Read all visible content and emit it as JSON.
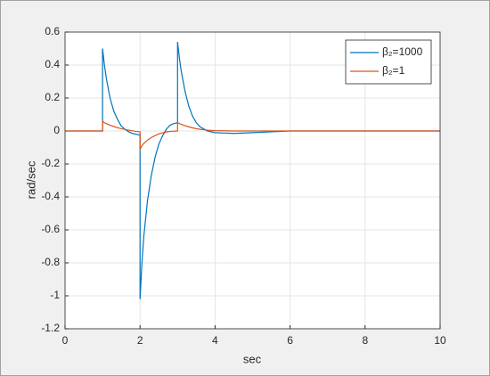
{
  "chart_data": {
    "type": "line",
    "xlabel": "sec",
    "ylabel": "rad/sec",
    "x": [
      0,
      1,
      1,
      1.05,
      1.1,
      1.2,
      1.3,
      1.4,
      1.5,
      1.6,
      1.7,
      1.8,
      1.9,
      2,
      2,
      2.05,
      2.1,
      2.2,
      2.3,
      2.4,
      2.5,
      2.6,
      2.7,
      2.8,
      2.9,
      3,
      3,
      3.05,
      3.1,
      3.2,
      3.3,
      3.4,
      3.5,
      3.6,
      3.8,
      4,
      4.5,
      5,
      5.5,
      6,
      7,
      8,
      10
    ],
    "series": [
      {
        "name": "β₂=1000",
        "color": "#0072BD",
        "values": [
          0,
          0,
          0.5,
          0.4,
          0.32,
          0.2,
          0.12,
          0.07,
          0.03,
          0.01,
          -0.005,
          -0.015,
          -0.02,
          -0.025,
          -1.02,
          -0.8,
          -0.64,
          -0.42,
          -0.27,
          -0.16,
          -0.08,
          -0.03,
          0.01,
          0.035,
          0.045,
          0.05,
          0.54,
          0.44,
          0.36,
          0.24,
          0.15,
          0.09,
          0.05,
          0.025,
          0,
          -0.01,
          -0.015,
          -0.01,
          -0.005,
          0,
          0,
          0,
          0
        ]
      },
      {
        "name": "β₂=1",
        "color": "#D95319",
        "values": [
          0,
          0,
          0.06,
          0.05,
          0.045,
          0.035,
          0.027,
          0.02,
          0.014,
          0.009,
          0.005,
          0.001,
          -0.003,
          -0.005,
          -0.11,
          -0.09,
          -0.075,
          -0.055,
          -0.04,
          -0.028,
          -0.018,
          -0.011,
          -0.006,
          -0.003,
          -0.001,
          0,
          0.05,
          0.045,
          0.04,
          0.032,
          0.025,
          0.019,
          0.014,
          0.01,
          0.005,
          0.002,
          0,
          0,
          0,
          0,
          0,
          0,
          0
        ]
      }
    ],
    "xlim": [
      0,
      10
    ],
    "xticks": [
      0,
      2,
      4,
      6,
      8,
      10
    ],
    "ylim": [
      -1.2,
      0.6
    ],
    "yticks": [
      -1.2,
      -1,
      -0.8,
      -0.6,
      -0.4,
      -0.2,
      0,
      0.2,
      0.4,
      0.6
    ],
    "grid": true,
    "legend": "upper right"
  }
}
